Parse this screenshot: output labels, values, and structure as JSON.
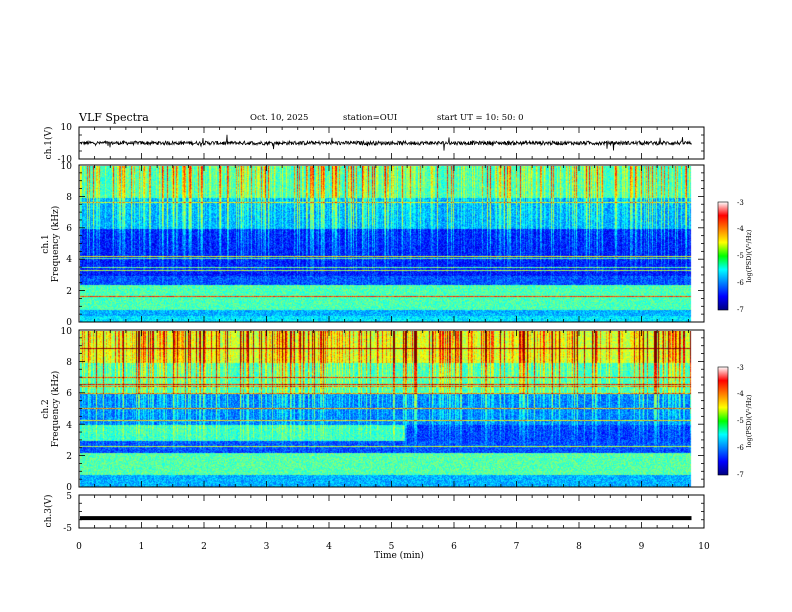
{
  "header": {
    "title": "VLF Spectra",
    "date": "Oct. 10, 2025",
    "station": "station=OUI",
    "start_ut": "start UT =  10: 50: 0"
  },
  "chart_data": [
    {
      "type": "line",
      "name": "ch1-waveform",
      "ylabel": "ch.1(V)",
      "ylim": [
        -10,
        10
      ],
      "ytick_labels": [
        "10",
        "-10"
      ],
      "xlim": [
        0,
        10
      ],
      "baseline": 0,
      "noise_amplitude": 1.2
    },
    {
      "type": "heatmap",
      "name": "ch1-spectrogram",
      "ylabel_line1": "ch.1",
      "ylabel_line2": "Frequency (kHz)",
      "ylim": [
        0,
        10
      ],
      "ytick_labels": [
        "0",
        "2",
        "4",
        "6",
        "8",
        "10"
      ],
      "xlim": [
        0,
        10
      ],
      "data_end_min": 9.8,
      "colorbar": {
        "label": "log(PSD)(V²/Hz)",
        "range": [
          -7,
          -3
        ],
        "tick_labels": [
          "-3",
          "-4",
          "-5",
          "-6",
          "-7"
        ]
      }
    },
    {
      "type": "heatmap",
      "name": "ch2-spectrogram",
      "ylabel_line1": "ch.2",
      "ylabel_line2": "Frequency (kHz)",
      "ylim": [
        0,
        10
      ],
      "ytick_labels": [
        "0",
        "2",
        "4",
        "6",
        "8",
        "10"
      ],
      "xlim": [
        0,
        10
      ],
      "data_end_min": 9.8,
      "colorbar": {
        "label": "log(PSD)(V²/Hz)",
        "range": [
          -7,
          -3
        ],
        "tick_labels": [
          "-3",
          "-4",
          "-5",
          "-6",
          "-7"
        ]
      }
    },
    {
      "type": "line",
      "name": "ch3-waveform",
      "ylabel": "ch.3(V)",
      "ylim": [
        -5,
        5
      ],
      "ytick_labels": [
        "5",
        "-5"
      ],
      "xlim": [
        0,
        10
      ],
      "baseline": -2,
      "noise_amplitude": 0
    }
  ],
  "xaxis": {
    "label": "Time (min)",
    "tick_labels": [
      "0",
      "1",
      "2",
      "3",
      "4",
      "5",
      "6",
      "7",
      "8",
      "9",
      "10"
    ]
  }
}
